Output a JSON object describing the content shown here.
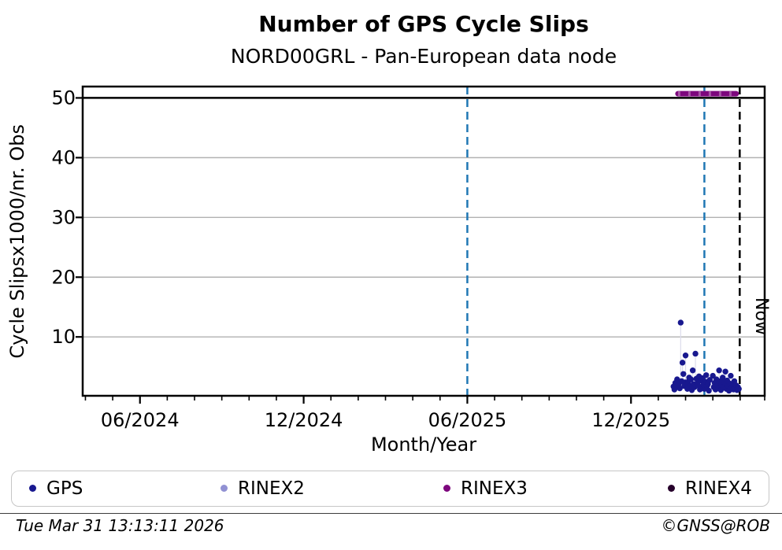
{
  "header": {
    "title": "Number of GPS Cycle Slips",
    "subtitle": "NORD00GRL - Pan-European data node"
  },
  "footer": {
    "timestamp": "Tue Mar 31 13:13:11 2026",
    "credit": "©GNSS@ROB"
  },
  "chart_data": {
    "type": "scatter",
    "title": "Number of GPS Cycle Slips",
    "subtitle": "NORD00GRL - Pan-European data node",
    "xlabel": "Month/Year",
    "ylabel": "Cycle Slipsx1000/nr. Obs",
    "x_range": [
      "2024-03-29",
      "2026-04-28"
    ],
    "ylim": [
      0.15,
      51.9
    ],
    "y_ticks": [
      10,
      20,
      30,
      40,
      50
    ],
    "x_ticks": [
      {
        "month_index": 0,
        "label": "06/2024"
      },
      {
        "month_index": 6,
        "label": "12/2024"
      },
      {
        "month_index": 12,
        "label": "06/2025"
      },
      {
        "month_index": 18,
        "label": "12/2025"
      }
    ],
    "x_minor_ticks": {
      "from_month": -2,
      "to_month": 23,
      "step": 1
    },
    "grid": "horizontal",
    "grid_color": "#b1b1b1",
    "reference_line": {
      "value": 50,
      "color": "#000000"
    },
    "vlines": [
      {
        "date": "2025-06-01",
        "color": "#1f77b4",
        "style": "dashed"
      },
      {
        "date": "2026-02-22",
        "color": "#1f77b4",
        "style": "dashed"
      },
      {
        "date": "2026-03-31",
        "color": "#000000",
        "style": "dashed",
        "label": "Now"
      }
    ],
    "now_label": "Now",
    "legend_position": "bottom",
    "series": [
      {
        "name": "GPS",
        "color": "#18188f",
        "points": [
          [
            "2026-01-18",
            1.7
          ],
          [
            "2026-01-19",
            1.2
          ],
          [
            "2026-01-20",
            2.3
          ],
          [
            "2026-01-21",
            1.6
          ],
          [
            "2026-01-22",
            2.9
          ],
          [
            "2026-01-23",
            1.9
          ],
          [
            "2026-01-24",
            2.2
          ],
          [
            "2026-01-25",
            1.4
          ],
          [
            "2026-01-26",
            12.4
          ],
          [
            "2026-01-27",
            2.6
          ],
          [
            "2026-01-28",
            5.7
          ],
          [
            "2026-01-29",
            3.8
          ],
          [
            "2026-01-30",
            1.8
          ],
          [
            "2026-01-31",
            2.4
          ],
          [
            "2026-02-01",
            6.9
          ],
          [
            "2026-02-02",
            2.0
          ],
          [
            "2026-02-03",
            1.3
          ],
          [
            "2026-02-04",
            2.5
          ],
          [
            "2026-02-05",
            3.2
          ],
          [
            "2026-02-06",
            1.8
          ],
          [
            "2026-02-07",
            2.9
          ],
          [
            "2026-02-08",
            1.1
          ],
          [
            "2026-02-09",
            4.4
          ],
          [
            "2026-02-10",
            2.1
          ],
          [
            "2026-02-11",
            1.6
          ],
          [
            "2026-02-12",
            7.2
          ],
          [
            "2026-02-13",
            3.0
          ],
          [
            "2026-02-14",
            2.2
          ],
          [
            "2026-02-15",
            1.9
          ],
          [
            "2026-02-16",
            3.4
          ],
          [
            "2026-02-17",
            1.2
          ],
          [
            "2026-02-18",
            2.7
          ],
          [
            "2026-02-19",
            1.5
          ],
          [
            "2026-02-20",
            3.1
          ],
          [
            "2026-02-21",
            2.0
          ],
          [
            "2026-02-22",
            1.3
          ],
          [
            "2026-02-23",
            2.5
          ],
          [
            "2026-02-24",
            3.6
          ],
          [
            "2026-02-25",
            1.8
          ],
          [
            "2026-02-26",
            2.1
          ],
          [
            "2026-02-27",
            1.0
          ],
          [
            "2026-02-28",
            2.8
          ],
          [
            "2026-03-01",
            3.5
          ],
          [
            "2026-03-02",
            1.6
          ],
          [
            "2026-03-03",
            2.3
          ],
          [
            "2026-03-04",
            1.2
          ],
          [
            "2026-03-05",
            2.9
          ],
          [
            "2026-03-06",
            1.9
          ],
          [
            "2026-03-07",
            1.4
          ],
          [
            "2026-03-08",
            4.4
          ],
          [
            "2026-03-09",
            2.6
          ],
          [
            "2026-03-10",
            1.1
          ],
          [
            "2026-03-11",
            2.0
          ],
          [
            "2026-03-12",
            3.2
          ],
          [
            "2026-03-13",
            1.7
          ],
          [
            "2026-03-14",
            2.4
          ],
          [
            "2026-03-15",
            4.2
          ],
          [
            "2026-03-16",
            1.3
          ],
          [
            "2026-03-17",
            2.7
          ],
          [
            "2026-03-18",
            1.8
          ],
          [
            "2026-03-19",
            1.0
          ],
          [
            "2026-03-20",
            2.2
          ],
          [
            "2026-03-21",
            3.5
          ],
          [
            "2026-03-22",
            1.5
          ],
          [
            "2026-03-23",
            2.0
          ],
          [
            "2026-03-24",
            1.2
          ],
          [
            "2026-03-25",
            2.6
          ],
          [
            "2026-03-26",
            1.4
          ],
          [
            "2026-03-27",
            1.9
          ],
          [
            "2026-03-28",
            1.1
          ],
          [
            "2026-03-29",
            1.6
          ],
          [
            "2026-03-30",
            1.3
          ]
        ]
      },
      {
        "name": "RINEX2",
        "color": "#9191d3",
        "points": []
      },
      {
        "name": "RINEX3",
        "color": "#7d077d",
        "points": [],
        "availability_bar": {
          "start": "2026-01-23",
          "end": "2026-03-27",
          "value": 50.7
        }
      },
      {
        "name": "RINEX4",
        "color": "#26002b",
        "points": []
      }
    ]
  }
}
